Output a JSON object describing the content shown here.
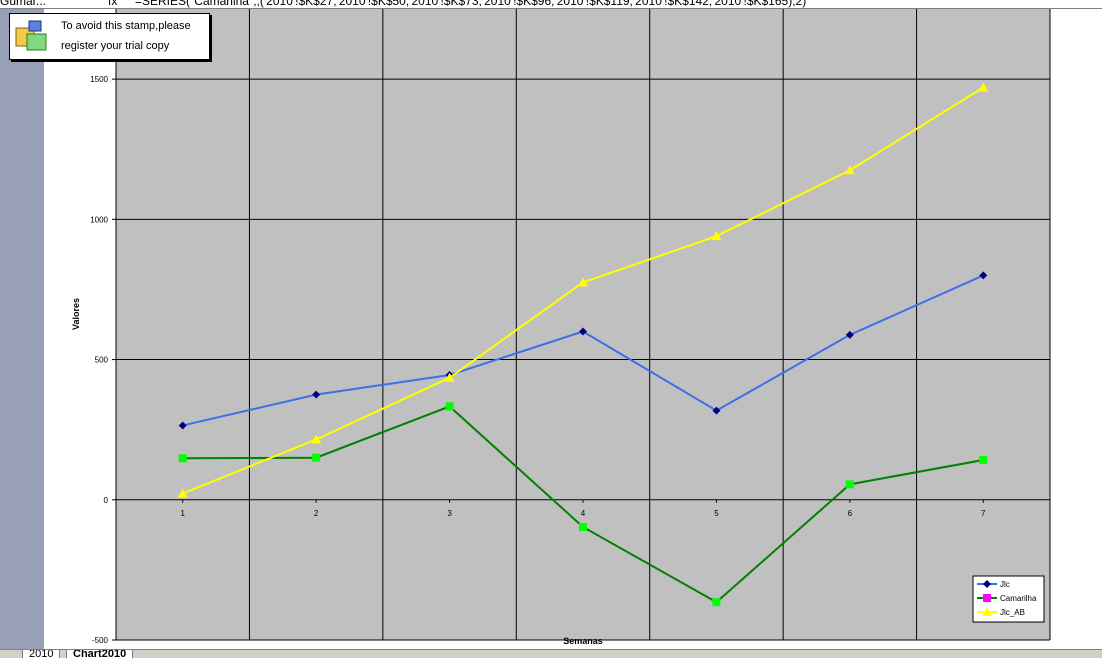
{
  "formula_bar": {
    "name_box": "Gumar...",
    "fx": "fx",
    "formula": "=SERIES(\"Camarilha\",,('2010'!$K$27;'2010'!$K$50;'2010'!$K$73;'2010'!$K$96;'2010'!$K$119;'2010'!$K$142;'2010'!$K$165),2)"
  },
  "stamp": {
    "line1": "To avoid this stamp,please",
    "line2": "register your trial copy"
  },
  "sheet_tabs": [
    "2010",
    "Chart2010"
  ],
  "colors": {
    "plot_background": "#C0C0C0",
    "grid": "#000000",
    "left_strip": "#98A0B8",
    "series_line_1": "#3F6FE8",
    "series_line_2": "#008000",
    "series_line_3": "#FFFF00",
    "marker_1": "#000080",
    "marker_2": "#00FF00",
    "marker_3": "#FFFF00",
    "legend_marker_2": "#FF00FF"
  },
  "chart_data": {
    "type": "line",
    "title": "",
    "xlabel": "Semanas",
    "ylabel": "Valores",
    "x": [
      1,
      2,
      3,
      4,
      5,
      6,
      7
    ],
    "ylim": [
      -500,
      1750
    ],
    "yticks": [
      -500,
      0,
      500,
      1000,
      1500
    ],
    "grid": true,
    "legend_position": "bottom-right",
    "series": [
      {
        "name": "Jlc",
        "marker": "diamond",
        "values": [
          265,
          375,
          445,
          600,
          318,
          588,
          800
        ]
      },
      {
        "name": "Camarilha",
        "marker": "square",
        "values": [
          148,
          150,
          333,
          -97,
          -365,
          55,
          142
        ]
      },
      {
        "name": "Jlc_AB",
        "marker": "triangle",
        "values": [
          22,
          215,
          435,
          775,
          940,
          1175,
          1470
        ]
      }
    ]
  }
}
